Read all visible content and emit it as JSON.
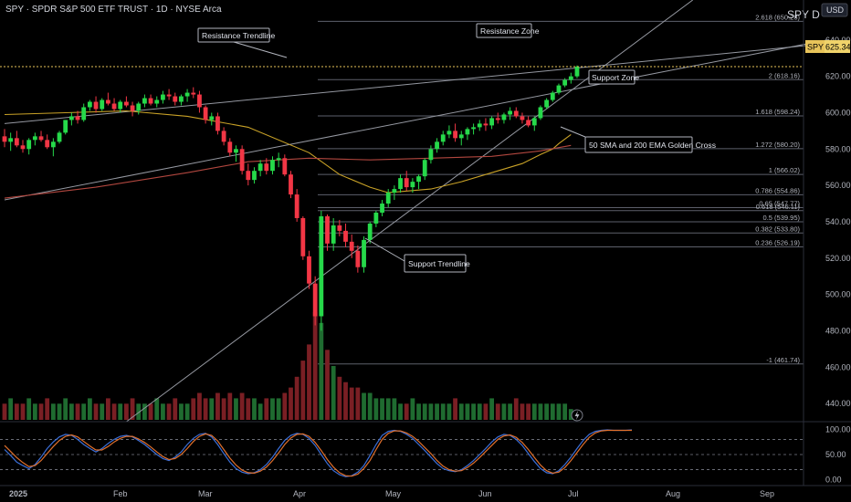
{
  "header": {
    "title": "SPY · SPDR S&P 500 ETF TRUST · 1D · NYSE Arca",
    "watermark": "SPY D",
    "currency": "USD"
  },
  "price_badge": {
    "symbol": "SPY",
    "value": "625.34"
  },
  "annotations": {
    "resistance_trendline": "Resistance Trendline",
    "resistance_zone": "Resistance Zone",
    "support_zone": "Support Zone",
    "golden_cross": "50 SMA and 200 EMA Golden Cross",
    "support_trendline": "Support Trendline"
  },
  "chart_data": [
    {
      "type": "candlestick",
      "title": "SPY · SPDR S&P 500 ETF TRUST · 1D · NYSE Arca",
      "x_axis": {
        "tick_labels": [
          "2025",
          "Feb",
          "Mar",
          "Apr",
          "May",
          "Jun",
          "Jul",
          "Aug",
          "Sep"
        ]
      },
      "y_axis": {
        "range": [
          430,
          662
        ],
        "tick_labels": [
          "640.00",
          "620.00",
          "600.00",
          "580.00",
          "560.00",
          "540.00",
          "520.00",
          "500.00",
          "480.00",
          "460.00",
          "440.00"
        ],
        "ticks": [
          640,
          620,
          600,
          580,
          560,
          540,
          520,
          500,
          480,
          460,
          440
        ],
        "position": "right"
      },
      "last_price": 625.34,
      "candles": [
        [
          587,
          591,
          581,
          584
        ],
        [
          584,
          589,
          579,
          586
        ],
        [
          586,
          590,
          581,
          582
        ],
        [
          582,
          585,
          578,
          580
        ],
        [
          580,
          586,
          577,
          585
        ],
        [
          585,
          589,
          582,
          587
        ],
        [
          587,
          590,
          584,
          585
        ],
        [
          585,
          588,
          580,
          581
        ],
        [
          581,
          586,
          576,
          584
        ],
        [
          584,
          590,
          583,
          589
        ],
        [
          589,
          596,
          588,
          596
        ],
        [
          596,
          600,
          593,
          598
        ],
        [
          598,
          601,
          594,
          596
        ],
        [
          596,
          605,
          595,
          603
        ],
        [
          603,
          607,
          601,
          606
        ],
        [
          606,
          609,
          600,
          602
        ],
        [
          602,
          608,
          601,
          607
        ],
        [
          607,
          611,
          604,
          605
        ],
        [
          605,
          608,
          601,
          602
        ],
        [
          602,
          607,
          600,
          606
        ],
        [
          606,
          609,
          603,
          604
        ],
        [
          604,
          606,
          598,
          601
        ],
        [
          601,
          606,
          599,
          605
        ],
        [
          605,
          610,
          603,
          608
        ],
        [
          608,
          610,
          604,
          605
        ],
        [
          605,
          609,
          603,
          607
        ],
        [
          607,
          612,
          605,
          610
        ],
        [
          610,
          613,
          607,
          609
        ],
        [
          609,
          611,
          604,
          606
        ],
        [
          606,
          610,
          604,
          609
        ],
        [
          609,
          613,
          606,
          611
        ],
        [
          611,
          614,
          608,
          610
        ],
        [
          610,
          612,
          600,
          603
        ],
        [
          603,
          604,
          594,
          596
        ],
        [
          596,
          600,
          593,
          598
        ],
        [
          598,
          600,
          588,
          590
        ],
        [
          590,
          592,
          582,
          584
        ],
        [
          584,
          586,
          576,
          578
        ],
        [
          578,
          582,
          573,
          580
        ],
        [
          580,
          582,
          566,
          568
        ],
        [
          568,
          572,
          560,
          563
        ],
        [
          563,
          570,
          561,
          568
        ],
        [
          568,
          574,
          565,
          572
        ],
        [
          572,
          575,
          566,
          568
        ],
        [
          568,
          576,
          566,
          574
        ],
        [
          574,
          578,
          570,
          575
        ],
        [
          575,
          577,
          565,
          566
        ],
        [
          566,
          568,
          553,
          555
        ],
        [
          555,
          558,
          540,
          542
        ],
        [
          542,
          543,
          519,
          521
        ],
        [
          521,
          524,
          503,
          506
        ],
        [
          506,
          510,
          483,
          488
        ],
        [
          488,
          546,
          480,
          543
        ],
        [
          543,
          544,
          524,
          528
        ],
        [
          528,
          542,
          524,
          538
        ],
        [
          538,
          541,
          532,
          535
        ],
        [
          535,
          539,
          526,
          529
        ],
        [
          529,
          533,
          520,
          524
        ],
        [
          524,
          527,
          512,
          515
        ],
        [
          515,
          532,
          512,
          530
        ],
        [
          530,
          540,
          528,
          539
        ],
        [
          539,
          546,
          537,
          545
        ],
        [
          545,
          552,
          543,
          550
        ],
        [
          550,
          558,
          548,
          556
        ],
        [
          556,
          560,
          552,
          558
        ],
        [
          558,
          566,
          556,
          564
        ],
        [
          564,
          568,
          557,
          559
        ],
        [
          559,
          564,
          556,
          562
        ],
        [
          562,
          566,
          558,
          565
        ],
        [
          565,
          575,
          563,
          574
        ],
        [
          574,
          582,
          572,
          580
        ],
        [
          580,
          586,
          578,
          584
        ],
        [
          584,
          590,
          582,
          588
        ],
        [
          588,
          593,
          586,
          590
        ],
        [
          590,
          594,
          584,
          586
        ],
        [
          586,
          590,
          582,
          588
        ],
        [
          588,
          592,
          585,
          591
        ],
        [
          591,
          594,
          588,
          592
        ],
        [
          592,
          596,
          590,
          594
        ],
        [
          594,
          597,
          590,
          593
        ],
        [
          593,
          598,
          591,
          597
        ],
        [
          597,
          600,
          594,
          596
        ],
        [
          596,
          600,
          594,
          599
        ],
        [
          599,
          603,
          596,
          601
        ],
        [
          601,
          603,
          597,
          598
        ],
        [
          598,
          600,
          594,
          596
        ],
        [
          596,
          598,
          592,
          593
        ],
        [
          593,
          598,
          590,
          597
        ],
        [
          597,
          604,
          596,
          603
        ],
        [
          603,
          608,
          602,
          607
        ],
        [
          607,
          612,
          606,
          611
        ],
        [
          611,
          616,
          610,
          615
        ],
        [
          615,
          619,
          614,
          618
        ],
        [
          618,
          622,
          616,
          620
        ],
        [
          620,
          626,
          619,
          625.34
        ]
      ],
      "moving_averages": [
        {
          "name": "50 SMA",
          "color": "#c9a227",
          "values": [
            [
              0,
              599
            ],
            [
              10,
              600
            ],
            [
              20,
              601
            ],
            [
              30,
              598
            ],
            [
              40,
              592
            ],
            [
              50,
              578
            ],
            [
              55,
              566
            ],
            [
              60,
              559
            ],
            [
              63,
              556
            ],
            [
              70,
              558
            ],
            [
              75,
              562
            ],
            [
              80,
              567
            ],
            [
              85,
              572
            ],
            [
              88,
              577
            ],
            [
              90,
              580
            ],
            [
              91,
              583
            ],
            [
              93,
              588
            ]
          ]
        },
        {
          "name": "200 EMA",
          "color": "#b2473f",
          "values": [
            [
              0,
              553
            ],
            [
              15,
              559
            ],
            [
              30,
              567
            ],
            [
              40,
              573
            ],
            [
              50,
              575
            ],
            [
              60,
              574
            ],
            [
              70,
              575
            ],
            [
              80,
              576
            ],
            [
              88,
              579
            ],
            [
              93,
              582
            ]
          ]
        }
      ],
      "fibonacci_levels": [
        {
          "label": "2.618 (650.28)",
          "price": 650.28
        },
        {
          "label": "2 (618.16)",
          "price": 618.16
        },
        {
          "label": "1.618 (598.24)",
          "price": 598.24
        },
        {
          "label": "1.272 (580.20)",
          "price": 580.2
        },
        {
          "label": "1 (566.02)",
          "price": 566.02
        },
        {
          "label": "0.786 (554.86)",
          "price": 554.86
        },
        {
          "label": "0.65 (547.77)",
          "price": 547.77
        },
        {
          "label": "0.618 (546.11)",
          "price": 546.11
        },
        {
          "label": "0.5 (539.95)",
          "price": 539.95
        },
        {
          "label": "0.382 (533.80)",
          "price": 533.8
        },
        {
          "label": "0.236 (526.19)",
          "price": 526.19
        },
        {
          "label": "-1 (461.74)",
          "price": 461.74
        }
      ],
      "trendlines": [
        {
          "name": "Resistance Trendline",
          "points": [
            [
              0,
              594
            ],
            [
              135,
              638
            ]
          ]
        },
        {
          "name": "Support Zone",
          "points": [
            [
              0,
              552
            ],
            [
              135,
              640
            ]
          ]
        },
        {
          "name": "Support Trendline",
          "points": [
            [
              20,
              430
            ],
            [
              113,
              662
            ]
          ]
        }
      ],
      "volume": [
        3,
        4,
        3,
        3,
        4,
        3,
        3,
        4,
        3,
        3,
        4,
        3,
        3,
        3,
        4,
        3,
        3,
        4,
        3,
        3,
        3,
        4,
        3,
        3,
        3,
        4,
        3,
        3,
        4,
        3,
        3,
        4,
        5,
        4,
        4,
        5,
        4,
        5,
        4,
        5,
        4,
        4,
        3,
        4,
        4,
        4,
        5,
        6,
        8,
        11,
        14,
        20,
        18,
        13,
        10,
        8,
        7,
        6,
        6,
        5,
        5,
        4,
        4,
        4,
        4,
        3,
        3,
        4,
        3,
        3,
        3,
        3,
        3,
        3,
        4,
        3,
        3,
        3,
        3,
        3,
        4,
        3,
        3,
        3,
        4,
        3,
        3,
        3,
        3,
        3,
        3,
        3,
        3,
        2
      ],
      "grid": false
    },
    {
      "type": "line",
      "title": "",
      "y_axis": {
        "range": [
          -8,
          108
        ],
        "tick_labels": [
          "100.00",
          "50.00",
          "0.00"
        ],
        "ticks": [
          100,
          50,
          0
        ]
      },
      "reference_lines": [
        80,
        50,
        20
      ],
      "series": [
        {
          "color": "#3b6fd8",
          "values": [
            60,
            48,
            35,
            28,
            22,
            30,
            45,
            62,
            75,
            85,
            90,
            88,
            80,
            70,
            62,
            55,
            62,
            72,
            80,
            86,
            88,
            85,
            78,
            70,
            60,
            50,
            42,
            38,
            45,
            55,
            70,
            82,
            90,
            92,
            85,
            70,
            52,
            35,
            22,
            15,
            12,
            14,
            20,
            30,
            45,
            62,
            78,
            88,
            92,
            90,
            82,
            68,
            50,
            32,
            18,
            10,
            6,
            8,
            15,
            28,
            48,
            70,
            88,
            96,
            98,
            96,
            90,
            82,
            70,
            58,
            45,
            32,
            22,
            18,
            16,
            20,
            28,
            38,
            50,
            62,
            75,
            85,
            90,
            88,
            80,
            68,
            52,
            36,
            22,
            14,
            12,
            18,
            30,
            45,
            62,
            78,
            90,
            96,
            98,
            99,
            98,
            98,
            98,
            99
          ]
        },
        {
          "color": "#e0702c",
          "values": [
            68,
            56,
            44,
            34,
            26,
            28,
            38,
            52,
            66,
            78,
            86,
            89,
            85,
            76,
            67,
            59,
            59,
            66,
            75,
            82,
            86,
            86,
            81,
            74,
            65,
            55,
            46,
            40,
            42,
            50,
            62,
            76,
            86,
            91,
            88,
            77,
            60,
            43,
            29,
            19,
            14,
            13,
            17,
            25,
            38,
            53,
            70,
            83,
            90,
            91,
            86,
            74,
            58,
            40,
            25,
            14,
            8,
            7,
            11,
            22,
            38,
            60,
            80,
            92,
            97,
            97,
            93,
            86,
            76,
            64,
            52,
            38,
            27,
            20,
            17,
            18,
            24,
            33,
            44,
            56,
            68,
            80,
            87,
            89,
            84,
            74,
            60,
            44,
            29,
            18,
            13,
            15,
            24,
            38,
            54,
            70,
            84,
            93,
            97,
            98,
            98,
            98,
            98,
            98
          ]
        }
      ]
    }
  ]
}
